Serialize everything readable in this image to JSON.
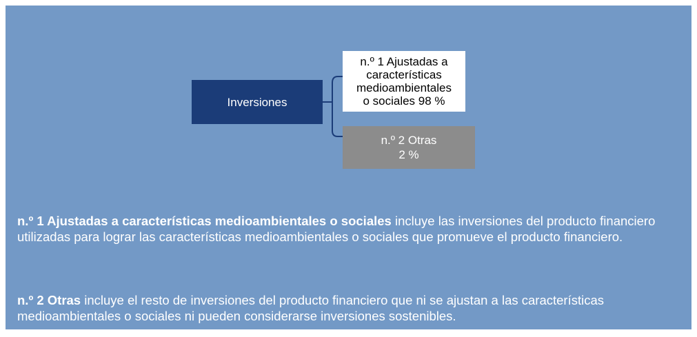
{
  "diagram": {
    "root": {
      "label": "Inversiones"
    },
    "branches": [
      {
        "lines": [
          "n.º 1 Ajustadas a",
          "características",
          "medioambientales",
          "o sociales 98 %"
        ]
      },
      {
        "lines": [
          "n.º 2 Otras",
          "2 %"
        ]
      }
    ]
  },
  "notes": [
    {
      "bold": "n.º 1 Ajustadas a características medioambientales o sociales",
      "text": " incluye las inversiones del producto financiero utilizadas para lograr las características medioambientales o sociales que promueve el producto financiero."
    },
    {
      "bold": "n.º 2 Otras",
      "text": " incluye el resto de inversiones del producto financiero que ni se ajustan a las características medioambientales o sociales ni pueden considerarse inversiones sostenibles."
    }
  ]
}
